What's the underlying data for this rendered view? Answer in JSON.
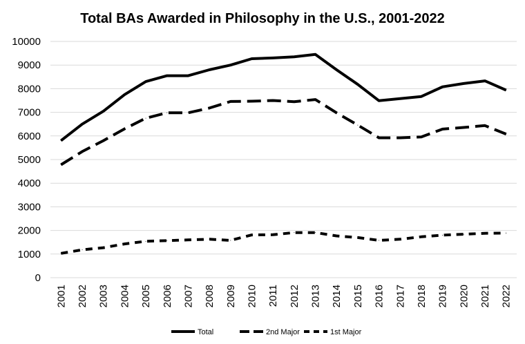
{
  "chart_data": {
    "type": "line",
    "title": "Total BAs Awarded in Philosophy in the U.S., 2001-2022",
    "xlabel": "",
    "ylabel": "",
    "categories": [
      "2001",
      "2002",
      "2003",
      "2004",
      "2005",
      "2006",
      "2007",
      "2008",
      "2009",
      "2010",
      "2011",
      "2012",
      "2013",
      "2014",
      "2015",
      "2016",
      "2017",
      "2018",
      "2019",
      "2020",
      "2021",
      "2022"
    ],
    "ylim": [
      0,
      10000
    ],
    "yticks": [
      "0",
      "1000",
      "2000",
      "3000",
      "4000",
      "5000",
      "6000",
      "7000",
      "8000",
      "9000",
      "10000"
    ],
    "grid": true,
    "legend_position": "bottom",
    "series": [
      {
        "name": "Total",
        "style": "solid",
        "values": [
          5800,
          6500,
          7050,
          7750,
          8300,
          8550,
          8550,
          8800,
          9000,
          9270,
          9300,
          9350,
          9450,
          8800,
          8180,
          7490,
          7580,
          7670,
          8080,
          8220,
          8330,
          7940
        ]
      },
      {
        "name": "2nd Major",
        "style": "long-dash",
        "values": [
          4780,
          5340,
          5800,
          6300,
          6750,
          6980,
          6980,
          7180,
          7460,
          7470,
          7500,
          7450,
          7540,
          6980,
          6460,
          5920,
          5920,
          5960,
          6290,
          6360,
          6440,
          6080
        ]
      },
      {
        "name": "1st Major",
        "style": "dash",
        "values": [
          1030,
          1180,
          1270,
          1430,
          1540,
          1570,
          1600,
          1630,
          1580,
          1810,
          1820,
          1910,
          1910,
          1770,
          1700,
          1580,
          1630,
          1730,
          1800,
          1840,
          1880,
          1890
        ]
      }
    ]
  }
}
